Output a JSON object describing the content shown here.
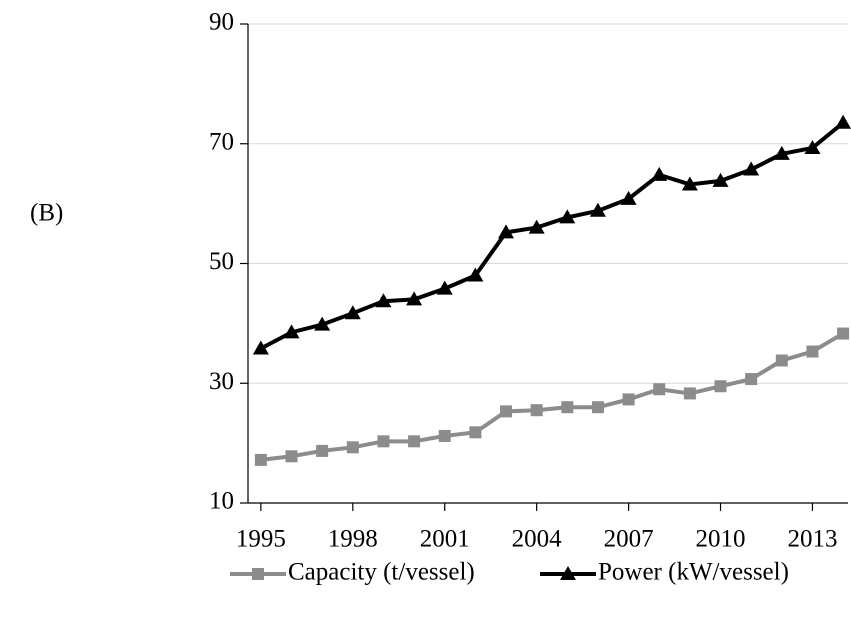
{
  "chart_data": {
    "type": "line",
    "panel_label": "(B)",
    "x": [
      1995,
      1996,
      1997,
      1998,
      1999,
      2000,
      2001,
      2002,
      2003,
      2004,
      2005,
      2006,
      2007,
      2008,
      2009,
      2010,
      2011,
      2012,
      2013,
      2014
    ],
    "series": [
      {
        "name": "Capacity (t/vessel)",
        "color": "#8c8c8c",
        "marker": "square",
        "values": [
          17.2,
          17.8,
          18.7,
          19.3,
          20.3,
          20.3,
          21.2,
          21.8,
          25.3,
          25.5,
          26,
          26,
          27.3,
          29,
          28.3,
          29.5,
          30.7,
          33.8,
          35.3,
          38.3
        ]
      },
      {
        "name": "Power (kW/vessel)",
        "color": "#000000",
        "marker": "triangle",
        "values": [
          35.8,
          38.5,
          39.8,
          41.7,
          43.7,
          44,
          45.8,
          48,
          55.2,
          56,
          57.7,
          58.8,
          60.8,
          64.8,
          63.2,
          63.8,
          65.7,
          68.3,
          69.3,
          73.5
        ]
      }
    ],
    "xlim": [
      1994.58,
      2014.16
    ],
    "xticks": [
      1995,
      1998,
      2001,
      2004,
      2007,
      2010,
      2013
    ],
    "ylim": [
      10,
      90
    ],
    "yticks": [
      10,
      30,
      50,
      70,
      90
    ],
    "grid": true,
    "legend": "bottom"
  }
}
